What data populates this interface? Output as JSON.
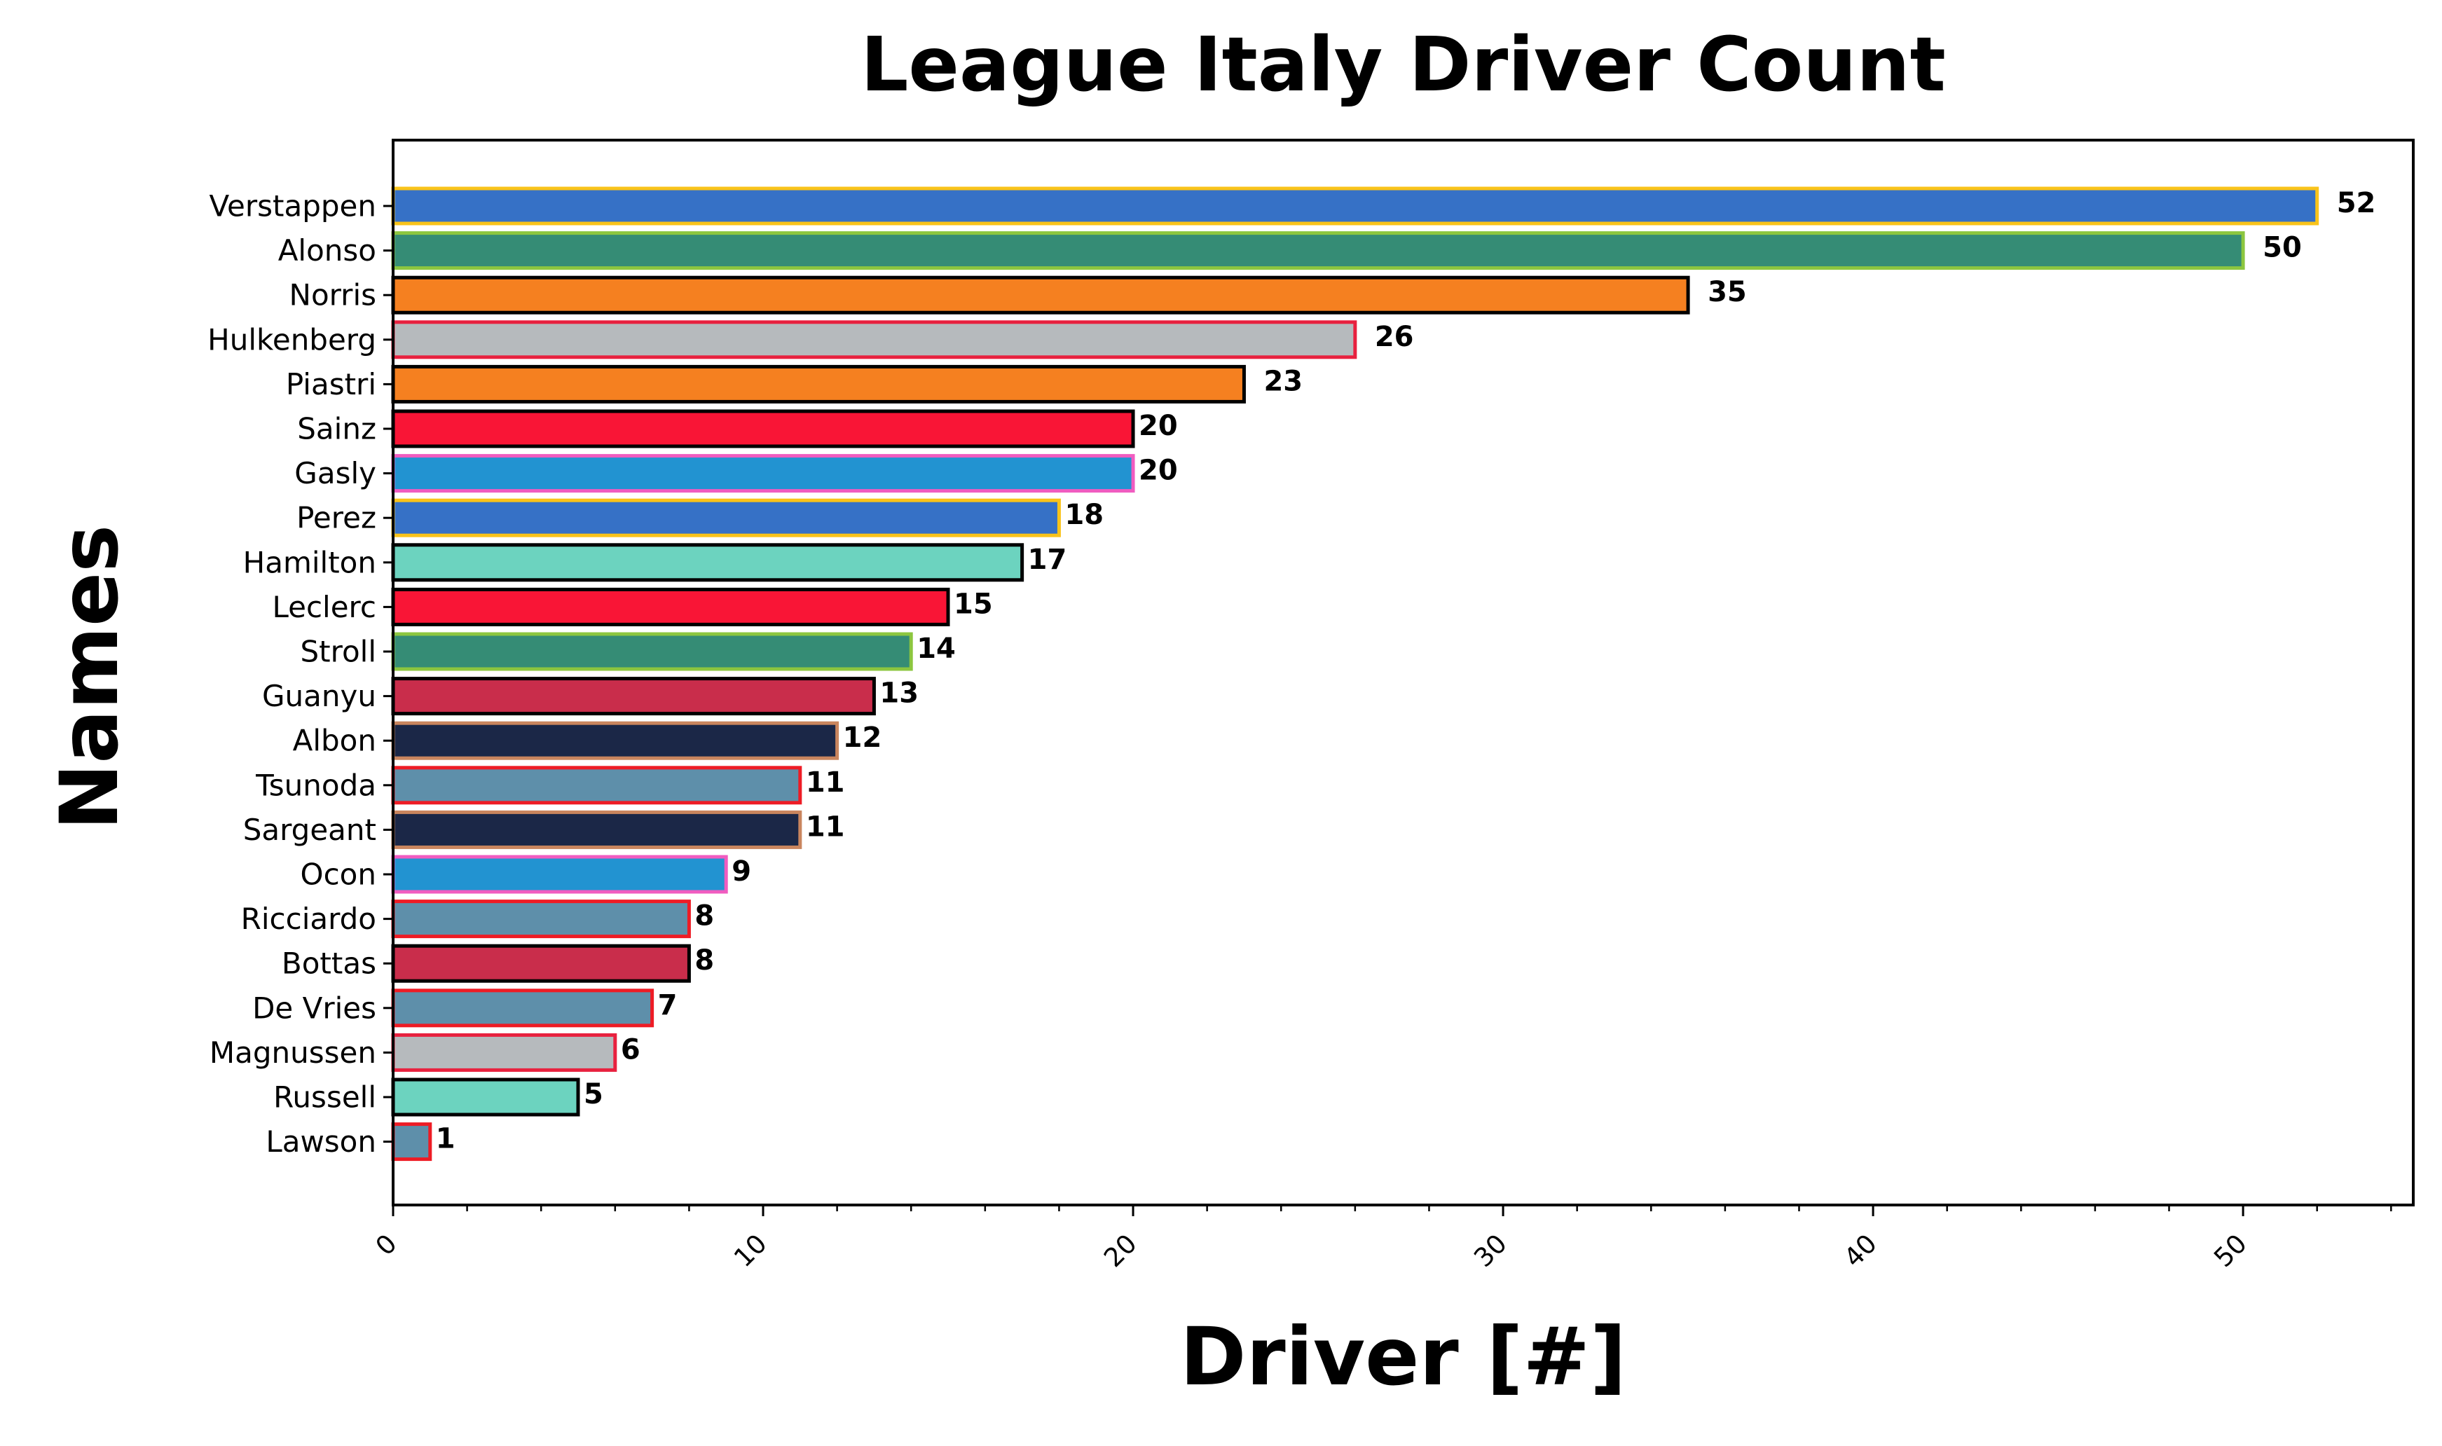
{
  "chart_data": {
    "type": "bar",
    "orientation": "horizontal",
    "title": "League Italy Driver Count",
    "xlabel": "Driver [#]",
    "ylabel": "Names",
    "xlim": [
      0,
      54.6
    ],
    "x_ticks": [
      0,
      10,
      20,
      30,
      40,
      50
    ],
    "grid": false,
    "legend": "none",
    "categories": [
      "Verstappen",
      "Alonso",
      "Norris",
      "Hulkenberg",
      "Piastri",
      "Sainz",
      "Gasly",
      "Perez",
      "Hamilton",
      "Leclerc",
      "Stroll",
      "Guanyu",
      "Albon",
      "Tsunoda",
      "Sargeant",
      "Ocon",
      "Ricciardo",
      "Bottas",
      "De Vries",
      "Magnussen",
      "Russell",
      "Lawson"
    ],
    "values": [
      52,
      50,
      35,
      26,
      23,
      20,
      20,
      18,
      17,
      15,
      14,
      13,
      12,
      11,
      11,
      9,
      8,
      8,
      7,
      6,
      5,
      1
    ],
    "value_labels": [
      "52",
      "50",
      "35",
      "26",
      "23",
      "20",
      "20",
      "18",
      "17",
      "15",
      "14",
      "13",
      "12",
      "11",
      "11",
      "9",
      "8",
      "8",
      "7",
      "6",
      "5",
      "1"
    ],
    "fill_colors": [
      "#3671C6",
      "#358C75",
      "#F58020",
      "#B6BABD",
      "#F58020",
      "#F91536",
      "#2293D1",
      "#3671C6",
      "#6CD3BF",
      "#F91536",
      "#358C75",
      "#C92D4B",
      "#1B2747",
      "#5E8FAA",
      "#1B2747",
      "#2293D1",
      "#5E8FAA",
      "#C92D4B",
      "#5E8FAA",
      "#B6BABD",
      "#6CD3BF",
      "#5E8FAA"
    ],
    "edge_colors": [
      "#F9C31A",
      "#8CC63F",
      "#000000",
      "#E8213F",
      "#000000",
      "#000000",
      "#F05CC0",
      "#F9C31A",
      "#000000",
      "#000000",
      "#8CC63F",
      "#000000",
      "#C9855E",
      "#EE1C25",
      "#C9855E",
      "#F05CC0",
      "#EE1C25",
      "#000000",
      "#EE1C25",
      "#E8213F",
      "#000000",
      "#EE1C25"
    ]
  }
}
